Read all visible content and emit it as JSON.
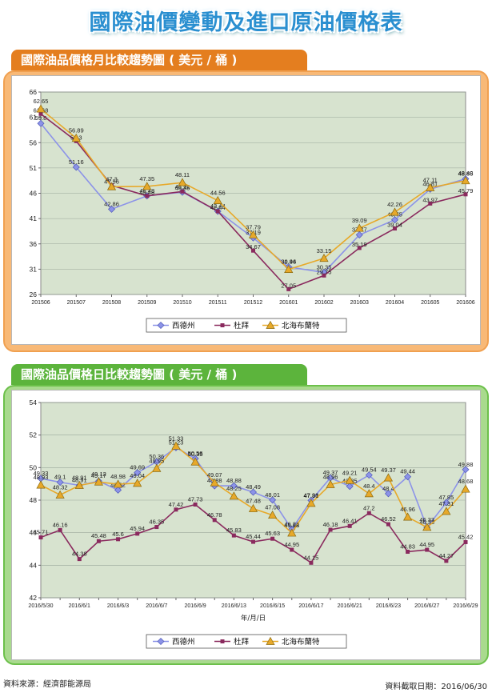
{
  "page_title": "國際油價變動及進口原油價格表",
  "colors": {
    "orange": "#f0973a",
    "green": "#6cc04a",
    "plot_bg": "#d7e3cf",
    "wti": "#8c93e8",
    "dubai": "#8a2a5e",
    "brent": "#e7a92a"
  },
  "chart_data": [
    {
      "type": "line",
      "title": "國際油品價格月比較趨勢圖 ( 美元 / 桶 )",
      "xlabel": "",
      "ylabel": "",
      "ylim": [
        26,
        66
      ],
      "yticks": [
        26,
        31,
        36,
        41,
        46,
        51,
        56,
        61,
        66
      ],
      "grid": true,
      "legend_position": "bottom",
      "categories": [
        "201506",
        "201507",
        "201508",
        "201509",
        "201510",
        "201511",
        "201512",
        "201601",
        "201602",
        "201603",
        "201604",
        "201605",
        "201606"
      ],
      "series": [
        {
          "name": "西德州",
          "marker": "diamond",
          "values": [
            59.8,
            51.16,
            42.86,
            45.48,
            46.22,
            42.44,
            37.19,
            31.44,
            30.35,
            37.77,
            40.75,
            46.81,
            48.85
          ]
        },
        {
          "name": "杜拜",
          "marker": "square",
          "values": [
            61.68,
            56.3,
            47.56,
            45.48,
            46.35,
            42.44,
            34.67,
            27.05,
            29.75,
            35.19,
            39.04,
            43.97,
            45.79
          ]
        },
        {
          "name": "北海布蘭特",
          "marker": "triangle",
          "values": [
            62.65,
            56.89,
            47.3,
            47.35,
            48.11,
            44.56,
            37.79,
            30.96,
            33.15,
            39.09,
            42.26,
            47.11,
            48.48
          ]
        }
      ]
    },
    {
      "type": "line",
      "title": "國際油品價格日比較趨勢圖 ( 美元 / 桶 )",
      "xlabel": "年/月/日",
      "ylabel": "",
      "ylim": [
        42,
        54
      ],
      "yticks": [
        42,
        44,
        46,
        48,
        50,
        52,
        54
      ],
      "grid": true,
      "legend_position": "bottom",
      "categories": [
        "2016/5/30",
        "2016/5/31",
        "2016/6/1",
        "2016/6/2",
        "2016/6/3",
        "2016/6/6",
        "2016/6/7",
        "2016/6/8",
        "2016/6/9",
        "2016/6/10",
        "2016/6/13",
        "2016/6/14",
        "2016/6/15",
        "2016/6/16",
        "2016/6/17",
        "2016/6/20",
        "2016/6/21",
        "2016/6/22",
        "2016/6/23",
        "2016/6/24",
        "2016/6/27",
        "2016/6/28",
        "2016/6/29"
      ],
      "tick_labels": [
        "2016/5/30",
        "",
        "2016/6/1",
        "",
        "2016/6/3",
        "",
        "2016/6/7",
        "",
        "2016/6/9",
        "",
        "2016/6/13",
        "",
        "2016/6/15",
        "",
        "2016/6/17",
        "",
        "2016/6/21",
        "",
        "2016/6/23",
        "",
        "2016/6/27",
        "",
        "2016/6/29"
      ],
      "series": [
        {
          "name": "西德州",
          "marker": "diamond",
          "values": [
            49.33,
            49.1,
            48.91,
            49.17,
            48.62,
            49.69,
            50.36,
            51.23,
            50.56,
            48.88,
            48.88,
            48.49,
            48.01,
            46.21,
            47.98,
            49.37,
            48.85,
            49.54,
            48.4,
            49.44,
            46.33,
            47.85,
            49.88
          ]
        },
        {
          "name": "杜拜",
          "marker": "square",
          "values": [
            45.71,
            46.16,
            44.38,
            45.48,
            45.6,
            45.94,
            46.35,
            47.42,
            47.73,
            46.78,
            45.83,
            45.44,
            45.63,
            44.95,
            44.15,
            46.18,
            46.41,
            47.2,
            46.52,
            44.83,
            44.95,
            44.27,
            45.42
          ]
        },
        {
          "name": "北海布蘭特",
          "marker": "triangle",
          "values": [
            48.93,
            48.32,
            48.91,
            49.12,
            48.98,
            49.04,
            49.95,
            51.33,
            50.35,
            49.07,
            48.25,
            47.48,
            47.08,
            45.98,
            47.81,
            48.96,
            49.21,
            48.4,
            49.37,
            46.96,
            46.33,
            47.31,
            48.68
          ]
        }
      ]
    }
  ],
  "footer": {
    "source": "資料來源：經濟部能源局",
    "date": "資料截取日期：2016/06/30"
  }
}
